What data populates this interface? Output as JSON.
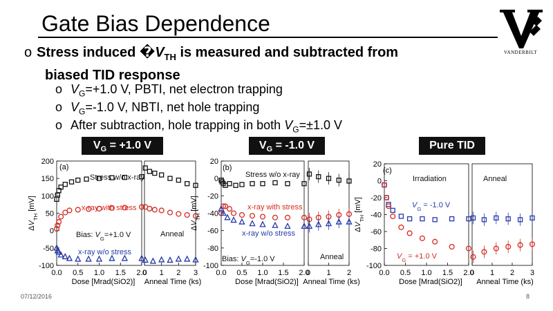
{
  "title": "Gate Bias Dependence",
  "logo_word": "VANDERBILT",
  "bullet_main": {
    "marker": "o",
    "line1_pre": "Stress induced ",
    "glyph": "�",
    "var": "V",
    "var_sub": "TH",
    "line1_post": " is measured and subtracted from",
    "line2": "biased TID response"
  },
  "sub_bullets": [
    {
      "marker": "o",
      "var": "V",
      "sub": "G",
      "text": "=+1.0 V, PBTI, net electron trapping"
    },
    {
      "marker": "o",
      "var": "V",
      "sub": "G",
      "text": "=-1.0 V, NBTI, net hole trapping"
    },
    {
      "marker": "o",
      "prefix": "After subtraction, hole trapping in both ",
      "var": "V",
      "sub": "G",
      "text": "=±1.0 V"
    }
  ],
  "badges": [
    {
      "pre": "V",
      "sub": "G",
      "post": " = +1.0 V"
    },
    {
      "pre": "V",
      "sub": "G",
      "post": " = -1.0 V"
    },
    {
      "pre": "",
      "sub": "",
      "post": "Pure TID"
    }
  ],
  "footer": {
    "date": "07/12/2016",
    "page": "8"
  },
  "colors": {
    "black": "#111111",
    "red": "#d42a20",
    "blue": "#2438a8"
  },
  "chart_data": [
    {
      "type": "scatter",
      "panel": "(a)",
      "ylabel": "ΔV_TH [mV]",
      "xlabel_left": "Dose [Mrad(SiO2)]",
      "xlabel_right": "Anneal Time (ks)",
      "yticks": [
        200,
        150,
        100,
        50,
        0,
        -50,
        -100
      ],
      "xticks_left": [
        "0.0",
        "0.5",
        "1.0",
        "1.5",
        "2.0"
      ],
      "xticks_right": [
        "0",
        "1",
        "2",
        "3"
      ],
      "annotations": [
        "Stress w/o x-ray",
        "x-ray with stress",
        "Bias: V_G=+1.0 V",
        "Anneal",
        "x-ray w/o stress"
      ],
      "series": [
        {
          "name": "Stress w/o x-ray",
          "color": "black",
          "marker": "square",
          "dose": [
            [
              0.0,
              90
            ],
            [
              0.02,
              102
            ],
            [
              0.05,
              115
            ],
            [
              0.1,
              125
            ],
            [
              0.2,
              133
            ],
            [
              0.35,
              140
            ],
            [
              0.5,
              145
            ],
            [
              0.7,
              148
            ],
            [
              1.0,
              150
            ],
            [
              1.3,
              152
            ],
            [
              1.6,
              153
            ],
            [
              2.0,
              155
            ]
          ],
          "anneal": [
            [
              0.05,
              180
            ],
            [
              0.3,
              170
            ],
            [
              0.6,
              165
            ],
            [
              1.0,
              160
            ],
            [
              1.5,
              150
            ],
            [
              2.0,
              145
            ],
            [
              2.5,
              135
            ],
            [
              3.0,
              130
            ]
          ]
        },
        {
          "name": "x-ray with stress",
          "color": "red",
          "marker": "circle",
          "dose": [
            [
              0.0,
              5
            ],
            [
              0.02,
              15
            ],
            [
              0.05,
              25
            ],
            [
              0.1,
              40
            ],
            [
              0.2,
              52
            ],
            [
              0.3,
              58
            ],
            [
              0.5,
              60
            ],
            [
              0.75,
              62
            ],
            [
              1.0,
              63
            ],
            [
              1.3,
              65
            ],
            [
              1.6,
              66
            ],
            [
              2.0,
              68
            ]
          ],
          "anneal": [
            [
              0.05,
              68
            ],
            [
              0.3,
              63
            ],
            [
              0.6,
              60
            ],
            [
              1.0,
              58
            ],
            [
              1.5,
              52
            ],
            [
              2.0,
              48
            ],
            [
              2.5,
              45
            ],
            [
              3.0,
              42
            ]
          ]
        },
        {
          "name": "x-ray w/o stress",
          "color": "blue",
          "marker": "triangle",
          "dose": [
            [
              0.0,
              -50
            ],
            [
              0.02,
              -58
            ],
            [
              0.05,
              -62
            ],
            [
              0.1,
              -70
            ],
            [
              0.2,
              -75
            ],
            [
              0.3,
              -80
            ],
            [
              0.5,
              -82
            ],
            [
              0.75,
              -82
            ],
            [
              1.0,
              -82
            ],
            [
              1.3,
              -80
            ],
            [
              1.6,
              -80
            ],
            [
              2.0,
              -80
            ]
          ],
          "anneal": [
            [
              0.05,
              -85
            ],
            [
              0.5,
              -88
            ],
            [
              1.0,
              -84
            ],
            [
              1.5,
              -85
            ],
            [
              2.0,
              -82
            ],
            [
              2.5,
              -82
            ],
            [
              3.0,
              -84
            ]
          ]
        }
      ]
    },
    {
      "type": "scatter",
      "panel": "(b)",
      "ylabel": "ΔV_TH [mV]",
      "xlabel_left": "Dose [Mrad(SiO2)]",
      "xlabel_right": "Anneal Time (ks)",
      "yticks": [
        20,
        0,
        -20,
        -40,
        -60,
        -80,
        -100
      ],
      "xticks_left": [
        "0.0",
        "0.5",
        "1.0",
        "1.5",
        "2.0"
      ],
      "xticks_right": [
        "0",
        "1",
        "2"
      ],
      "annotations": [
        "Stress w/o x-ray",
        "x-ray with stress",
        "x-ray w/o stress",
        "Bias: V_G=-1.0 V",
        "Anneal"
      ],
      "series": [
        {
          "name": "Stress w/o x-ray",
          "color": "black",
          "marker": "square",
          "dose": [
            [
              0.0,
              -2
            ],
            [
              0.02,
              -4
            ],
            [
              0.05,
              -6
            ],
            [
              0.1,
              -8
            ],
            [
              0.2,
              -6
            ],
            [
              0.35,
              -8
            ],
            [
              0.5,
              -7
            ],
            [
              0.75,
              -6
            ],
            [
              1.0,
              -6
            ],
            [
              1.3,
              -5
            ],
            [
              1.6,
              -6
            ],
            [
              2.0,
              -6
            ]
          ],
          "anneal": [
            [
              0.05,
              5
            ],
            [
              0.5,
              2
            ],
            [
              1.0,
              0
            ],
            [
              1.5,
              -2
            ],
            [
              2.0,
              -3
            ]
          ]
        },
        {
          "name": "x-ray with stress",
          "color": "red",
          "marker": "circle",
          "dose": [
            [
              0.0,
              -40
            ],
            [
              0.05,
              -32
            ],
            [
              0.1,
              -32
            ],
            [
              0.2,
              -35
            ],
            [
              0.3,
              -40
            ],
            [
              0.5,
              -42
            ],
            [
              0.75,
              -43
            ],
            [
              1.0,
              -44
            ],
            [
              1.3,
              -45
            ],
            [
              1.6,
              -45
            ],
            [
              2.0,
              -45
            ]
          ],
          "anneal": [
            [
              0.05,
              -47
            ],
            [
              0.5,
              -45
            ],
            [
              1.0,
              -44
            ],
            [
              1.5,
              -42
            ],
            [
              2.0,
              -41
            ]
          ]
        },
        {
          "name": "x-ray w/o stress",
          "color": "blue",
          "marker": "triangle",
          "dose": [
            [
              0.0,
              -35
            ],
            [
              0.05,
              -40
            ],
            [
              0.15,
              -45
            ],
            [
              0.3,
              -48
            ],
            [
              0.5,
              -50
            ],
            [
              0.75,
              -52
            ],
            [
              1.0,
              -53
            ],
            [
              1.3,
              -54
            ],
            [
              1.6,
              -55
            ],
            [
              2.0,
              -55
            ]
          ],
          "anneal": [
            [
              0.05,
              -55
            ],
            [
              0.5,
              -53
            ],
            [
              1.0,
              -52
            ],
            [
              1.5,
              -50
            ],
            [
              2.0,
              -50
            ]
          ]
        }
      ]
    },
    {
      "type": "scatter",
      "panel": "(c)",
      "ylabel": "ΔV_TH [mV]",
      "xlabel_left": "Dose [Mrad(SiO2)]",
      "xlabel_right": "Anneal Time (ks)",
      "yticks": [
        20,
        0,
        -20,
        -40,
        -60,
        -80,
        -100
      ],
      "xticks_left": [
        "0.0",
        "0.5",
        "1.0",
        "1.5",
        "2.0"
      ],
      "xticks_right": [
        "0",
        "1",
        "2",
        "3"
      ],
      "annotations": [
        "Irradiation",
        "Anneal",
        "V_G = -1.0 V",
        "V_G = +1.0 V"
      ],
      "series": [
        {
          "name": "V_G = -1.0 V",
          "color": "blue",
          "marker": "square",
          "dose": [
            [
              0.0,
              -5
            ],
            [
              0.05,
              -20
            ],
            [
              0.1,
              -28
            ],
            [
              0.2,
              -35
            ],
            [
              0.4,
              -42
            ],
            [
              0.6,
              -45
            ],
            [
              0.9,
              -45
            ],
            [
              1.2,
              -46
            ],
            [
              1.6,
              -45
            ],
            [
              2.0,
              -45
            ]
          ],
          "anneal": [
            [
              0.05,
              -44
            ],
            [
              0.6,
              -46
            ],
            [
              1.2,
              -44
            ],
            [
              1.8,
              -45
            ],
            [
              2.4,
              -46
            ],
            [
              3.0,
              -44
            ]
          ]
        },
        {
          "name": "V_G = +1.0 V",
          "color": "red",
          "marker": "circle",
          "dose": [
            [
              0.0,
              -5
            ],
            [
              0.05,
              -20
            ],
            [
              0.1,
              -30
            ],
            [
              0.2,
              -42
            ],
            [
              0.4,
              -55
            ],
            [
              0.6,
              -62
            ],
            [
              0.9,
              -68
            ],
            [
              1.2,
              -72
            ],
            [
              1.6,
              -78
            ],
            [
              2.0,
              -80
            ]
          ],
          "anneal": [
            [
              0.05,
              -90
            ],
            [
              0.6,
              -84
            ],
            [
              1.2,
              -80
            ],
            [
              1.8,
              -78
            ],
            [
              2.4,
              -76
            ],
            [
              3.0,
              -75
            ]
          ]
        }
      ]
    }
  ]
}
